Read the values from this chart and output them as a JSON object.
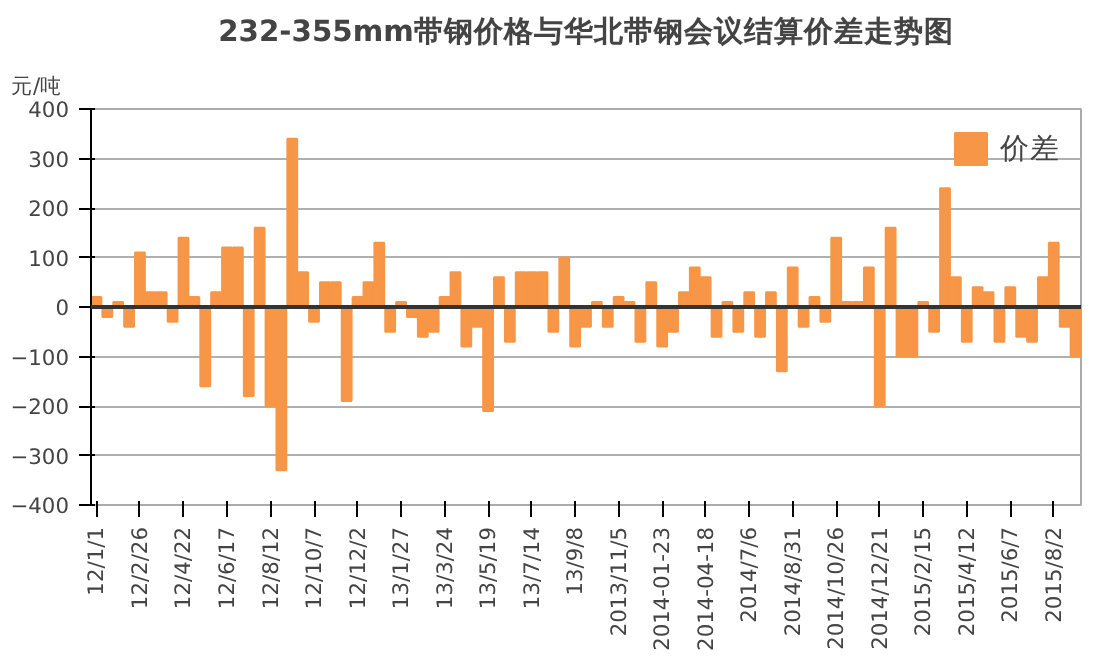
{
  "chart_data": {
    "type": "bar",
    "title": "232-355mm带钢价格与华北带钢会议结算价差走势图",
    "ylabel": "元/吨",
    "categories": [
      "12/1/1",
      null,
      null,
      null,
      "12/2/26",
      null,
      null,
      null,
      "12/4/22",
      null,
      null,
      null,
      "12/6/17",
      null,
      null,
      null,
      "12/8/12",
      null,
      null,
      null,
      "12/10/7",
      null,
      null,
      null,
      "12/12/2",
      null,
      null,
      null,
      "13/1/27",
      null,
      null,
      null,
      "13/3/24",
      null,
      null,
      null,
      "13/5/19",
      null,
      null,
      null,
      "13/7/14",
      null,
      null,
      null,
      "13/9/8",
      null,
      null,
      null,
      "2013/11/5",
      null,
      null,
      null,
      "2014-01-23",
      null,
      null,
      null,
      "2014-04-18",
      null,
      null,
      null,
      "2014/7/6",
      null,
      null,
      null,
      "2014/8/31",
      null,
      null,
      null,
      "2014/10/26",
      null,
      null,
      null,
      "2014/12/21",
      null,
      null,
      null,
      "2015/2/15",
      null,
      null,
      null,
      "2015/4/12",
      null,
      null,
      null,
      "2015/6/7",
      null,
      null,
      null,
      "2015/8/2",
      null,
      null
    ],
    "series": [
      {
        "name": "价差",
        "color": "#f79646",
        "values": [
          20,
          -20,
          10,
          -40,
          110,
          30,
          30,
          -30,
          140,
          20,
          -160,
          30,
          120,
          120,
          -180,
          160,
          -200,
          -330,
          340,
          70,
          -30,
          50,
          50,
          -190,
          20,
          50,
          130,
          -50,
          10,
          -20,
          -60,
          -50,
          20,
          70,
          -80,
          -40,
          -210,
          60,
          -70,
          70,
          70,
          70,
          -50,
          100,
          -80,
          -40,
          10,
          -40,
          20,
          10,
          -70,
          50,
          -80,
          -50,
          30,
          80,
          60,
          -60,
          10,
          -50,
          30,
          -60,
          30,
          -130,
          80,
          -40,
          20,
          -30,
          140,
          10,
          10,
          80,
          -200,
          160,
          -100,
          -100,
          10,
          -50,
          240,
          60,
          -70,
          40,
          30,
          -70,
          40,
          -60,
          -70,
          60,
          130,
          -40,
          -100
        ]
      }
    ],
    "ylim": [
      -400,
      400
    ],
    "yticks": [
      -400,
      -300,
      -200,
      -100,
      0,
      100,
      200,
      300,
      400
    ],
    "grid": "y",
    "legend": "top right"
  }
}
